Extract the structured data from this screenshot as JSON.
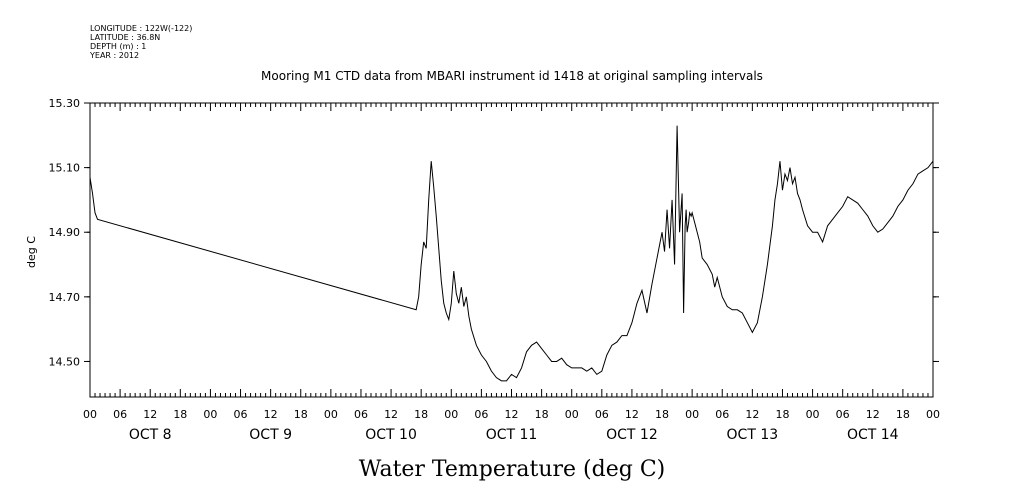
{
  "chart_data": {
    "type": "line",
    "metadata_lines": [
      "LONGITUDE : 122W(-122)",
      "LATITUDE : 36.8N",
      "DEPTH (m) : 1",
      "YEAR : 2012"
    ],
    "title": "Mooring M1 CTD data from MBARI instrument id 1418 at original sampling intervals",
    "xlabel": "Water Temperature (deg C)",
    "ylabel": "deg C",
    "ylim": [
      14.39,
      15.3
    ],
    "y_ticks": [
      "15.30",
      "15.10",
      "14.90",
      "14.70",
      "14.50"
    ],
    "x_range_hours": [
      0,
      168
    ],
    "x_hour_ticks": [
      "00",
      "06",
      "12",
      "18",
      "00",
      "06",
      "12",
      "18",
      "00",
      "06",
      "12",
      "18",
      "00",
      "06",
      "12",
      "18",
      "00",
      "06",
      "12",
      "18",
      "00",
      "06",
      "12",
      "18",
      "00",
      "06",
      "12",
      "18",
      "00"
    ],
    "x_day_labels": [
      "OCT  8",
      "OCT  9",
      "OCT 10",
      "OCT 11",
      "OCT 12",
      "OCT 13",
      "OCT 14"
    ],
    "grid": false,
    "series": [
      {
        "x_hours": [
          0,
          0.5,
          1,
          1.5,
          65,
          65.5,
          66,
          66.5,
          67,
          67.5,
          68,
          68.5,
          69,
          69.5,
          70,
          70.5,
          71,
          71.5,
          72,
          72.5,
          73,
          73.5,
          74,
          74.5,
          75,
          75.5,
          76,
          77,
          78,
          79,
          80,
          81,
          82,
          83,
          84,
          85,
          86,
          87,
          88,
          89,
          90,
          91,
          92,
          93,
          94,
          95,
          96,
          97,
          98,
          99,
          100,
          101,
          102,
          103,
          104,
          105,
          106,
          107,
          108,
          109,
          110,
          111,
          112,
          113,
          114,
          114.5,
          115,
          115.5,
          116,
          116.5,
          117,
          117.5,
          118,
          118.3,
          118.6,
          118.8,
          119,
          119.3,
          119.5,
          119.8,
          120,
          120.5,
          121,
          121.5,
          122,
          123,
          124,
          124.5,
          125,
          126,
          127,
          128,
          129,
          130,
          131,
          132,
          133,
          134,
          135,
          136,
          136.5,
          137,
          137.5,
          138,
          138.5,
          139,
          139.5,
          140,
          140.5,
          141,
          141.5,
          142,
          143,
          144,
          145,
          146,
          147,
          148,
          149,
          150,
          151,
          152,
          153,
          154,
          155,
          156,
          157,
          158,
          159,
          160,
          161,
          162,
          163,
          164,
          165,
          166,
          167,
          168
        ],
        "values": [
          15.07,
          15.02,
          14.96,
          14.94,
          14.66,
          14.7,
          14.8,
          14.87,
          14.85,
          15.0,
          15.12,
          15.04,
          14.95,
          14.85,
          14.75,
          14.68,
          14.65,
          14.63,
          14.68,
          14.78,
          14.71,
          14.68,
          14.73,
          14.67,
          14.7,
          14.64,
          14.6,
          14.55,
          14.52,
          14.5,
          14.47,
          14.45,
          14.44,
          14.44,
          14.46,
          14.45,
          14.48,
          14.53,
          14.55,
          14.56,
          14.54,
          14.52,
          14.5,
          14.5,
          14.51,
          14.49,
          14.48,
          14.48,
          14.48,
          14.47,
          14.48,
          14.46,
          14.47,
          14.52,
          14.55,
          14.56,
          14.58,
          14.58,
          14.62,
          14.68,
          14.72,
          14.65,
          14.74,
          14.82,
          14.9,
          14.84,
          14.97,
          14.85,
          15.0,
          14.8,
          15.23,
          14.9,
          15.02,
          14.65,
          14.92,
          14.97,
          14.9,
          14.93,
          14.96,
          14.95,
          14.96,
          14.93,
          14.9,
          14.87,
          14.82,
          14.8,
          14.77,
          14.73,
          14.76,
          14.7,
          14.67,
          14.66,
          14.66,
          14.65,
          14.62,
          14.59,
          14.62,
          14.7,
          14.8,
          14.92,
          15.0,
          15.05,
          15.12,
          15.03,
          15.08,
          15.06,
          15.1,
          15.05,
          15.07,
          15.02,
          15.0,
          14.97,
          14.92,
          14.9,
          14.9,
          14.87,
          14.92,
          14.94,
          14.96,
          14.98,
          15.01,
          15.0,
          14.99,
          14.97,
          14.95,
          14.92,
          14.9,
          14.91,
          14.93,
          14.95,
          14.98,
          15.0,
          15.03,
          15.05,
          15.08,
          15.09,
          15.1,
          15.12
        ]
      }
    ]
  }
}
